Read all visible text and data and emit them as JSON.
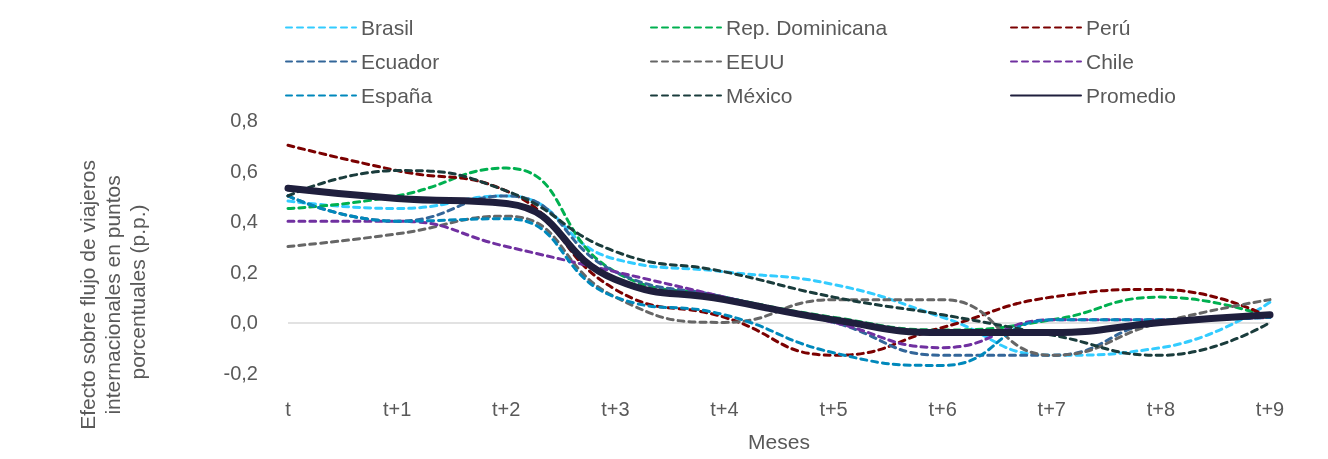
{
  "chart_data": {
    "type": "line",
    "xlabel": "Meses",
    "ylabel": "Efecto sobre flujo de viajeros internacionales en puntos porcentuales (p.p.)",
    "categories": [
      "t",
      "t+1",
      "t+2",
      "t+3",
      "t+4",
      "t+5",
      "t+6",
      "t+7",
      "t+8",
      "t+9"
    ],
    "series": [
      {
        "name": "Brasil",
        "color": "#33ccff",
        "line_style": "dashed",
        "values": [
          0.48,
          0.45,
          0.5,
          0.25,
          0.2,
          0.15,
          0.02,
          -0.13,
          -0.1,
          0.08
        ]
      },
      {
        "name": "Rep. Dominicana",
        "color": "#00b050",
        "line_style": "dashed",
        "values": [
          0.45,
          0.5,
          0.61,
          0.2,
          0.1,
          0.02,
          -0.03,
          0.01,
          0.1,
          0.02
        ]
      },
      {
        "name": "Perú",
        "color": "#7b0000",
        "line_style": "dashed",
        "values": [
          0.7,
          0.6,
          0.52,
          0.13,
          0.02,
          -0.13,
          -0.02,
          0.1,
          0.13,
          0.02
        ]
      },
      {
        "name": "Ecuador",
        "color": "#336699",
        "line_style": "dashed",
        "values": [
          0.5,
          0.4,
          0.5,
          0.2,
          0.1,
          0.0,
          -0.13,
          -0.13,
          0.0,
          0.02
        ]
      },
      {
        "name": "EEUU",
        "color": "#666666",
        "line_style": "dashed",
        "values": [
          0.3,
          0.35,
          0.42,
          0.1,
          0.0,
          0.09,
          0.09,
          -0.13,
          0.0,
          0.09
        ]
      },
      {
        "name": "Chile",
        "color": "#7030a0",
        "line_style": "dashed",
        "values": [
          0.4,
          0.4,
          0.3,
          0.2,
          0.1,
          0.0,
          -0.1,
          0.01,
          0.01,
          0.02
        ]
      },
      {
        "name": "España",
        "color": "#0088bb",
        "line_style": "dashed",
        "values": [
          0.5,
          0.4,
          0.41,
          0.1,
          0.03,
          -0.12,
          -0.17,
          0.01,
          0.01,
          0.02
        ]
      },
      {
        "name": "México",
        "color": "#1a3c3c",
        "line_style": "dashed",
        "values": [
          0.5,
          0.6,
          0.52,
          0.28,
          0.2,
          0.1,
          0.03,
          -0.05,
          -0.13,
          0.0
        ]
      },
      {
        "name": "Promedio",
        "color": "#1f1f3d",
        "line_style": "solid",
        "values": [
          0.53,
          0.49,
          0.47,
          0.17,
          0.09,
          0.01,
          -0.04,
          -0.04,
          0.0,
          0.03
        ]
      }
    ],
    "ylim": [
      -0.2,
      0.8
    ],
    "yticks": [
      {
        "value": -0.2,
        "label": "-0,2"
      },
      {
        "value": 0,
        "label": "0,0"
      },
      {
        "value": 0.2,
        "label": "0,2"
      },
      {
        "value": 0.4,
        "label": "0,4"
      },
      {
        "value": 0.6,
        "label": "0,6"
      },
      {
        "value": 0.8,
        "label": "0,8"
      }
    ],
    "ref_lines": [
      {
        "axis": "y",
        "value": 0,
        "label": null,
        "color": "#d9d9d9"
      }
    ],
    "grid": false,
    "legend": "top",
    "marker": "none"
  }
}
